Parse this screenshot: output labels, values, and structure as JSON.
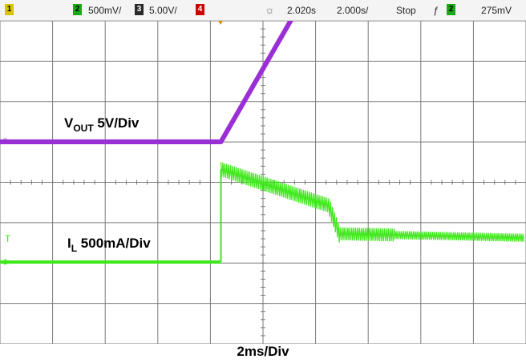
{
  "chart_data": {
    "type": "line",
    "title": "",
    "xlabel": "2ms/Div",
    "ylabel": "",
    "x_unit": "ms",
    "xlim": [
      0,
      20
    ],
    "divisions": {
      "x": 10,
      "y": 8
    },
    "grid": true,
    "series": [
      {
        "name": "VOUT 5V/Div",
        "label_main": "V",
        "label_sub": "OUT",
        "label_rest": " 5V/Div",
        "color": "#9b2fd6",
        "points": [
          [
            0,
            0
          ],
          [
            8.4,
            0
          ],
          [
            12.2,
            4.3
          ],
          [
            13.0,
            4.45
          ],
          [
            20,
            4.55
          ]
        ]
      },
      {
        "name": "IL 500mA/Div",
        "label_main": "I",
        "label_sub": "L",
        "label_rest": " 500mA/Div",
        "color": "#3ee81a",
        "points": [
          [
            0,
            0
          ],
          [
            8.4,
            0
          ],
          [
            8.4,
            2.3
          ],
          [
            12.5,
            1.4
          ],
          [
            12.9,
            0.7
          ],
          [
            20,
            0.6
          ]
        ]
      }
    ]
  },
  "status_bar": {
    "ch1_num": "1",
    "ch2_num": "2",
    "ch2_scale": "500mV/",
    "ch3_num": "3",
    "ch3_scale": "5.00V/",
    "ch4_num": "4",
    "trigger_level_icon": "sun-icon",
    "timebase_delay": "2.020s",
    "timebase_scale": "2.000s/",
    "run_state": "Stop",
    "trigger_edge_symbol": "ƒ",
    "trigger_channel": "2",
    "trigger_value": "275mV"
  }
}
